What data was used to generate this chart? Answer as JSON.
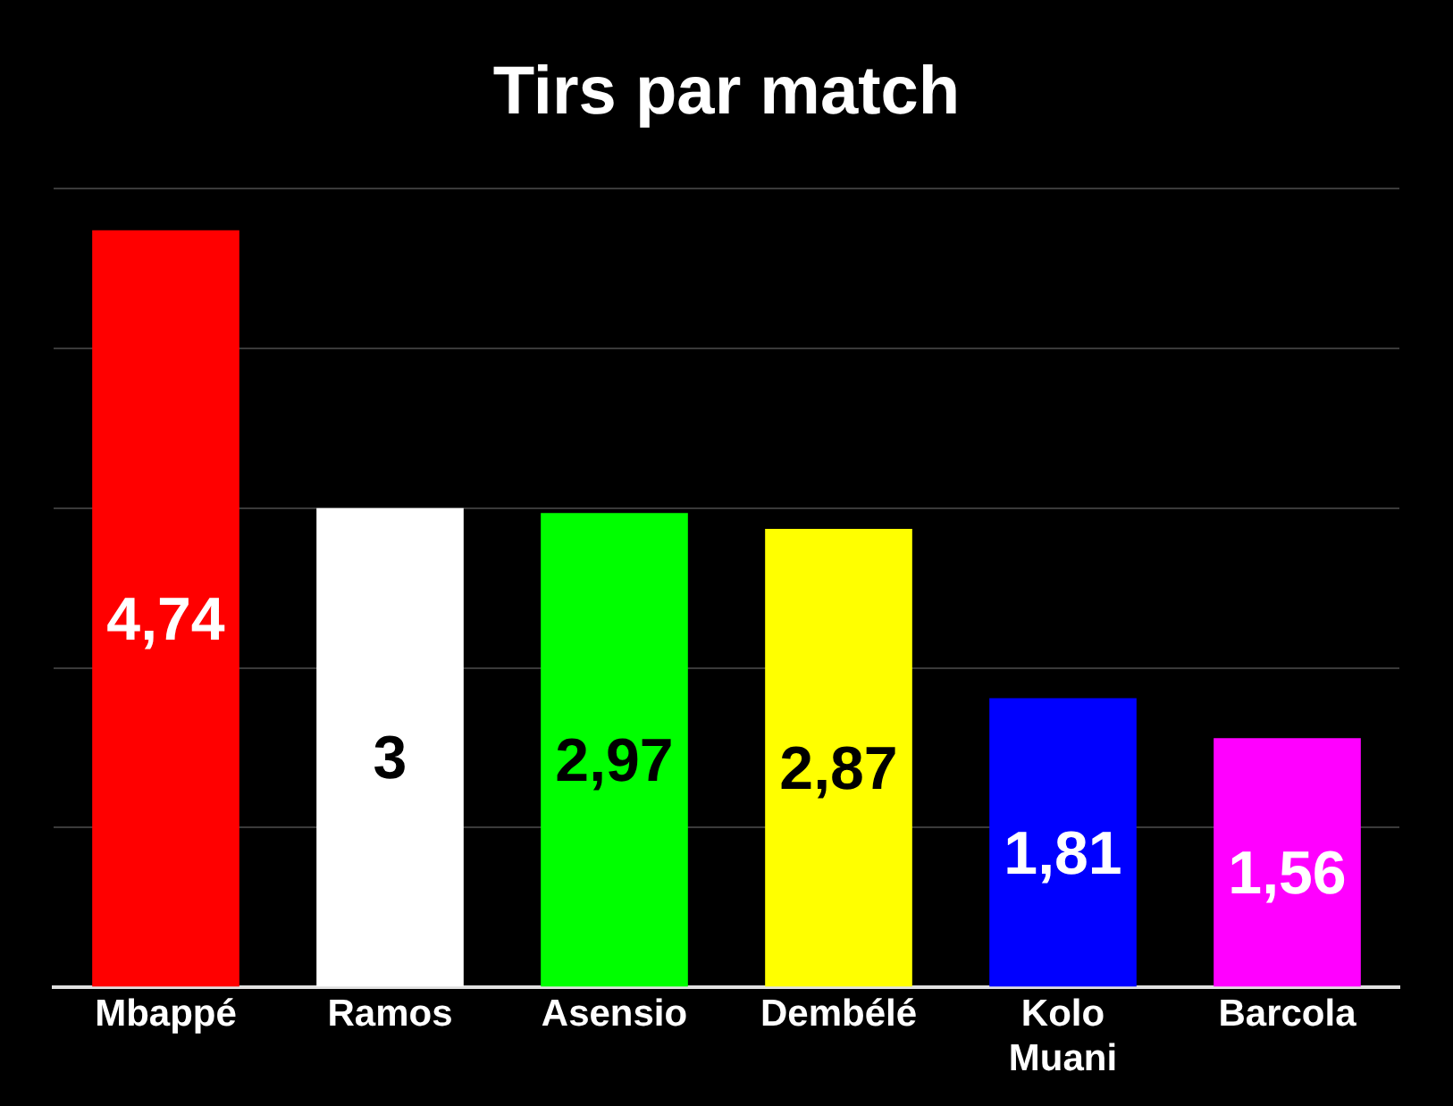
{
  "chart_data": {
    "type": "bar",
    "title": "Tirs par match",
    "categories": [
      "Mbappé",
      "Ramos",
      "Asensio",
      "Dembélé",
      "Kolo Muani",
      "Barcola"
    ],
    "values": [
      4.74,
      3,
      2.97,
      2.87,
      1.81,
      1.56
    ],
    "colors": [
      "#ff0000",
      "#ffffff",
      "#00ff00",
      "#ffff00",
      "#0000ff",
      "#ff00ff"
    ],
    "ylim": [
      0,
      5
    ],
    "yticks": [
      {
        "value": 0,
        "label": null
      },
      {
        "value": 1,
        "label": null
      },
      {
        "value": 2,
        "label": null
      },
      {
        "value": 3,
        "label": null
      },
      {
        "value": 4,
        "label": null
      },
      {
        "value": 5,
        "label": null
      }
    ],
    "value_labels": [
      "4,74",
      "3",
      "2,97",
      "2,87",
      "1,81",
      "1,56"
    ],
    "grid": "y",
    "tick_labels": "x",
    "legend": false
  }
}
